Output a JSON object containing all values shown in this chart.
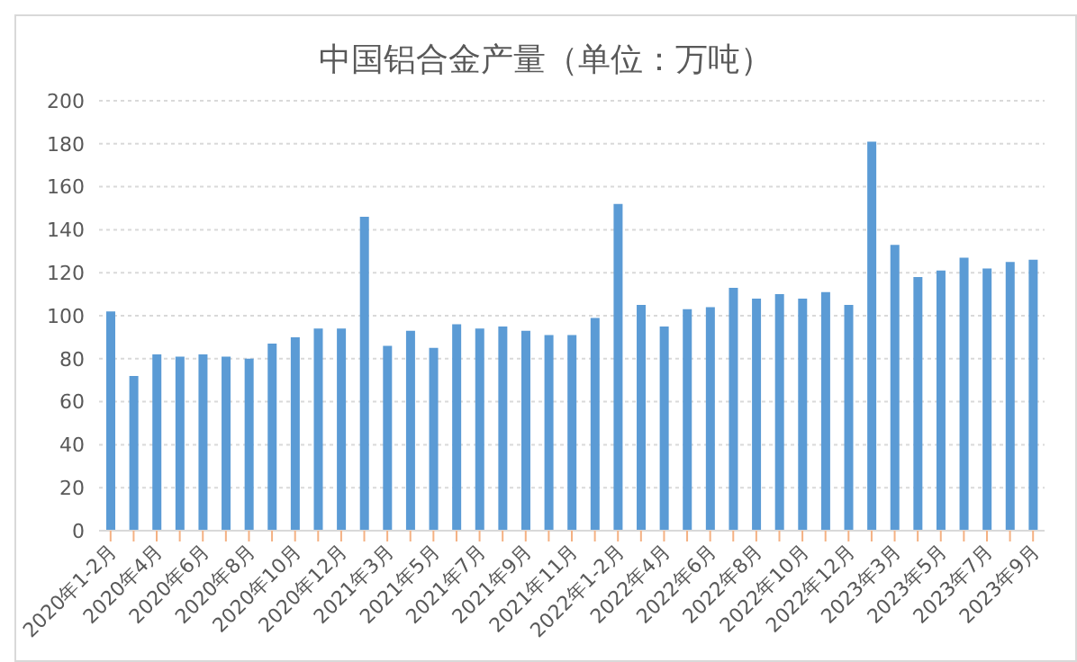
{
  "chart_data": {
    "type": "bar",
    "title": "中国铝合金产量（单位：万吨）",
    "categories": [
      "2020年1-2月",
      null,
      "2020年4月",
      null,
      "2020年6月",
      null,
      "2020年8月",
      null,
      "2020年10月",
      null,
      "2020年12月",
      null,
      "2021年3月",
      null,
      "2021年5月",
      null,
      "2021年7月",
      null,
      "2021年9月",
      null,
      "2021年11月",
      null,
      "2022年1-2月",
      null,
      "2022年4月",
      null,
      "2022年6月",
      null,
      "2022年8月",
      null,
      "2022年10月",
      null,
      "2022年12月",
      null,
      "2023年3月",
      null,
      "2023年5月",
      null,
      "2023年7月",
      null,
      "2023年9月"
    ],
    "values": [
      102,
      72,
      82,
      81,
      82,
      81,
      80,
      87,
      90,
      94,
      94,
      146,
      86,
      93,
      85,
      96,
      94,
      95,
      93,
      91,
      91,
      99,
      152,
      105,
      95,
      103,
      104,
      113,
      108,
      110,
      108,
      111,
      105,
      181,
      133,
      118,
      121,
      127,
      122,
      125,
      126
    ],
    "color": "#5b9bd5",
    "ylim": [
      0,
      200
    ],
    "yticks": [
      0,
      20,
      40,
      60,
      80,
      100,
      120,
      140,
      160,
      180,
      200
    ],
    "grid": "y",
    "legend": false
  }
}
